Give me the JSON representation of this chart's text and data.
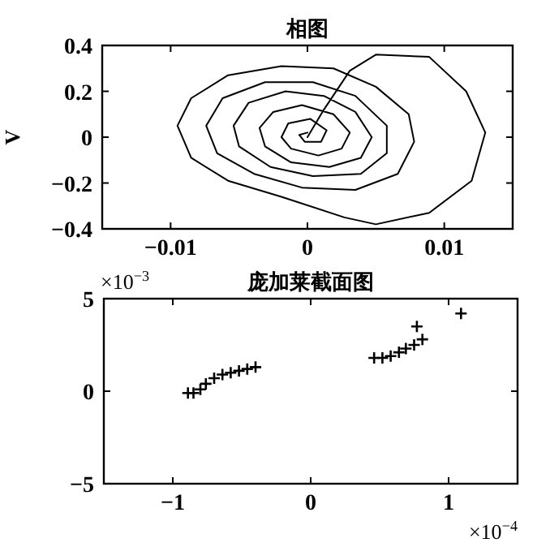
{
  "chart_data": [
    {
      "type": "line",
      "title": "相图",
      "ylabel": "V",
      "xlim": [
        -0.015,
        0.015
      ],
      "xticks": [
        -0.01,
        0,
        0.01
      ],
      "ylim": [
        -0.4,
        0.4
      ],
      "yticks": [
        -0.4,
        -0.2,
        0,
        0.2,
        0.4
      ],
      "series": [
        {
          "color": "#000000",
          "x": [
            0,
            0.0012,
            0.0031,
            0.005,
            0.0089,
            0.0116,
            0.013,
            0.012,
            0.0089,
            0.005,
            0.0027,
            -0.0019,
            -0.0058,
            -0.0085,
            -0.0095,
            -0.0085,
            -0.0058,
            -0.0019,
            0.0019,
            0.005,
            0.0074,
            0.0078,
            0.0066,
            0.0035,
            -0.0004,
            -0.0039,
            -0.0066,
            -0.0074,
            -0.0062,
            -0.0031,
            0.0004,
            0.0035,
            0.0058,
            0.0058,
            0.0039,
            0.0004,
            -0.0027,
            -0.005,
            -0.0054,
            -0.0043,
            -0.0016,
            0.0012,
            0.0035,
            0.0047,
            0.0039,
            0.0016,
            -0.0012,
            -0.0031,
            -0.0035,
            -0.0025,
            -0.0004,
            0.0019,
            0.0031,
            0.0025,
            0.0008,
            -0.0012,
            -0.0019,
            -0.0014,
            0.0002,
            0.0014,
            0.001,
            -0.0002,
            -0.0006,
            0
          ],
          "values": [
            0,
            0.12,
            0.29,
            0.36,
            0.35,
            0.2,
            0.02,
            -0.19,
            -0.33,
            -0.38,
            -0.35,
            -0.26,
            -0.19,
            -0.09,
            0.05,
            0.17,
            0.27,
            0.31,
            0.3,
            0.22,
            0.1,
            -0.02,
            -0.16,
            -0.23,
            -0.22,
            -0.16,
            -0.07,
            0.05,
            0.17,
            0.24,
            0.24,
            0.18,
            0.05,
            -0.07,
            -0.16,
            -0.17,
            -0.13,
            -0.04,
            0.05,
            0.15,
            0.2,
            0.18,
            0.11,
            0,
            -0.09,
            -0.13,
            -0.11,
            -0.04,
            0.04,
            0.11,
            0.14,
            0.1,
            0.02,
            -0.05,
            -0.08,
            -0.05,
            0,
            0.06,
            0.08,
            0.03,
            -0.02,
            -0.02,
            0.01,
            0.02
          ]
        }
      ]
    },
    {
      "type": "scatter",
      "title": "庞加莱截面图",
      "marker": "cross",
      "xlim": [
        -1.5,
        1.5
      ],
      "xticks": [
        -1,
        0,
        1
      ],
      "ylim": [
        -5,
        5
      ],
      "yticks": [
        -5,
        0,
        5
      ],
      "annotations": [
        "×10$^{−3}$",
        "×10$^{−4}$"
      ],
      "series": [
        {
          "color": "#000000",
          "x": [
            -0.89,
            -0.85,
            -0.8,
            -0.76,
            -0.7,
            -0.64,
            -0.58,
            -0.52,
            -0.46,
            -0.4,
            0.46,
            0.52,
            0.58,
            0.64,
            0.69,
            0.75,
            0.81,
            0.77,
            1.09
          ],
          "values": [
            -0.1,
            -0.1,
            0.1,
            0.4,
            0.7,
            0.9,
            1,
            1.1,
            1.2,
            1.3,
            1.8,
            1.8,
            1.9,
            2.1,
            2.3,
            2.5,
            2.8,
            3.5,
            4.2
          ]
        }
      ]
    }
  ]
}
